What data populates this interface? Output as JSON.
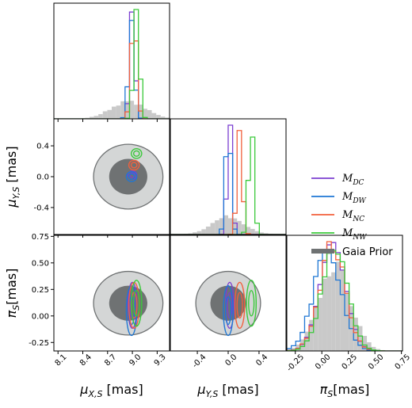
{
  "chart_data": {
    "type": "corner",
    "layout": "lower-triangular 3x3 (histograms on diagonal, 2D density contours below)",
    "parameters": [
      {
        "key": "mu_x",
        "label": "μ_{X,S} [mas]",
        "range": [
          8.05,
          9.45
        ],
        "ticks": [
          "8.1",
          "8.4",
          "8.7",
          "9.0",
          "9.3"
        ],
        "tick_values": [
          8.1,
          8.4,
          8.7,
          9.0,
          9.3
        ]
      },
      {
        "key": "mu_y",
        "label": "μ_{Y,S} [mas]",
        "range": [
          -0.75,
          0.75
        ],
        "ticks": [
          "-0.4",
          "0.0",
          "0.4"
        ],
        "tick_values": [
          -0.4,
          0.0,
          0.4
        ]
      },
      {
        "key": "pi",
        "label": "π_S[mas]",
        "range": [
          -0.33,
          0.76
        ],
        "ticks": [
          "-0.25",
          "0.00",
          "0.25",
          "0.50",
          "0.75"
        ],
        "tick_values": [
          -0.25,
          0.0,
          0.25,
          0.5,
          0.75
        ]
      }
    ],
    "row_labels": {
      "mu_y": "μ_{Y,S} [mas]",
      "pi": "π_S[mas]"
    },
    "series": [
      {
        "name": "M_DC",
        "legend_main": "M",
        "legend_sub": "DC",
        "color": "#7b3fd1",
        "mean": {
          "mu_x": 9.0,
          "mu_y": 0.02,
          "pi": 0.1
        },
        "sigma": {
          "mu_x": 0.03,
          "mu_y": 0.03,
          "pi": 0.12
        }
      },
      {
        "name": "M_DW",
        "legend_main": "M",
        "legend_sub": "DW",
        "color": "#1f77d4",
        "mean": {
          "mu_x": 8.99,
          "mu_y": 0.0,
          "pi": 0.05
        },
        "sigma": {
          "mu_x": 0.035,
          "mu_y": 0.035,
          "pi": 0.13
        }
      },
      {
        "name": "M_NC",
        "legend_main": "M",
        "legend_sub": "NC",
        "color": "#f2603c",
        "mean": {
          "mu_x": 9.02,
          "mu_y": 0.15,
          "pi": 0.1
        },
        "sigma": {
          "mu_x": 0.035,
          "mu_y": 0.035,
          "pi": 0.12
        }
      },
      {
        "name": "M_NW",
        "legend_main": "M",
        "legend_sub": "NW",
        "color": "#3ac93a",
        "mean": {
          "mu_x": 9.05,
          "mu_y": 0.3,
          "pi": 0.12
        },
        "sigma": {
          "mu_x": 0.035,
          "mu_y": 0.035,
          "pi": 0.12
        }
      },
      {
        "name": "Gaia Prior",
        "legend_main": "Gaia Prior",
        "legend_sub": "",
        "color": "#888888",
        "mean": {
          "mu_x": 8.95,
          "mu_y": 0.0,
          "pi": 0.12
        },
        "sigma": {
          "mu_x": 0.21,
          "mu_y": 0.21,
          "pi": 0.15
        }
      }
    ],
    "legend_position": "right",
    "grid": false
  },
  "legend": {
    "gaia_label": "Gaia Prior"
  }
}
